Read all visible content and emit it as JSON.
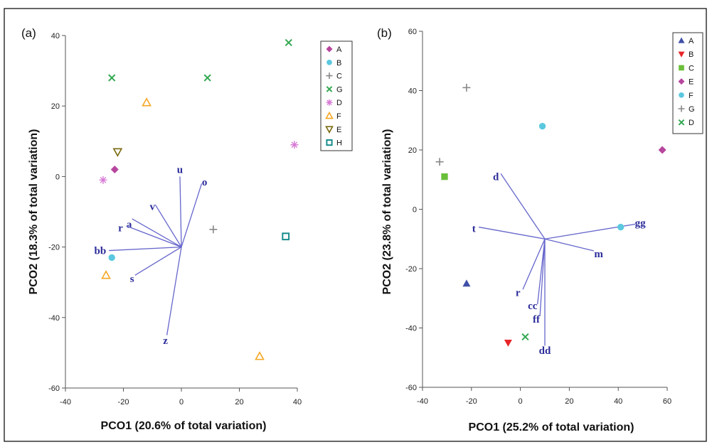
{
  "chart_data": [
    {
      "type": "scatter",
      "panel_label": "(a)",
      "xlabel": "PCO1 (20.6% of total variation)",
      "ylabel": "PCO2 (18.3% of total variation)",
      "xlim": [
        -40,
        40
      ],
      "ylim": [
        -60,
        40
      ],
      "xticks": [
        -40,
        -20,
        0,
        20,
        40
      ],
      "yticks": [
        -60,
        -40,
        -20,
        0,
        20,
        40
      ],
      "grid": false,
      "legend_position": "top-right",
      "origin": [
        0,
        -20
      ],
      "series": [
        {
          "name": "A",
          "color": "#b7469e",
          "marker": "diamond",
          "points": [
            [
              -23,
              2
            ]
          ]
        },
        {
          "name": "B",
          "color": "#5bc8e0",
          "marker": "circle",
          "points": [
            [
              -24,
              -23
            ]
          ]
        },
        {
          "name": "C",
          "color": "#888888",
          "marker": "plus",
          "points": [
            [
              11,
              -15
            ]
          ]
        },
        {
          "name": "G",
          "color": "#34a853",
          "marker": "x",
          "points": [
            [
              -24,
              28
            ],
            [
              9,
              28
            ],
            [
              37,
              38
            ]
          ]
        },
        {
          "name": "D",
          "color": "#d77bd6",
          "marker": "asterisk",
          "points": [
            [
              -27,
              -1
            ],
            [
              39,
              9
            ]
          ]
        },
        {
          "name": "F",
          "color": "#f5a623",
          "marker": "triangle-up-open",
          "points": [
            [
              -12,
              21
            ],
            [
              -26,
              -28
            ],
            [
              27,
              -51
            ]
          ]
        },
        {
          "name": "E",
          "color": "#7a6a10",
          "marker": "triangle-down-open",
          "points": [
            [
              -22,
              7
            ]
          ]
        },
        {
          "name": "H",
          "color": "#1a8c8c",
          "marker": "square-open",
          "points": [
            [
              36,
              -17
            ]
          ]
        }
      ],
      "vectors": [
        {
          "label": "u",
          "end": [
            -0.5,
            0
          ],
          "label_at": [
            -0.5,
            2
          ]
        },
        {
          "label": "o",
          "end": [
            7,
            -2
          ],
          "label_at": [
            8,
            -1.5
          ]
        },
        {
          "label": "v",
          "end": [
            -9,
            -8
          ],
          "label_at": [
            -10,
            -8.5
          ]
        },
        {
          "label": "a",
          "end": [
            -17,
            -12
          ],
          "label_at": [
            -18,
            -13.5
          ]
        },
        {
          "label": "r",
          "end": [
            -19,
            -14
          ],
          "label_at": [
            -21,
            -14.5
          ]
        },
        {
          "label": "bb",
          "end": [
            -25,
            -21
          ],
          "label_at": [
            -28,
            -21
          ]
        },
        {
          "label": "s",
          "end": [
            -16,
            -28
          ],
          "label_at": [
            -17,
            -29
          ]
        },
        {
          "label": "z",
          "end": [
            -5,
            -45
          ],
          "label_at": [
            -5.5,
            -46.5
          ]
        }
      ]
    },
    {
      "type": "scatter",
      "panel_label": "(b)",
      "xlabel": "PCO1 (25.2% of total variation)",
      "ylabel": "PCO2 (23.8% of total variation)",
      "xlim": [
        -40,
        60
      ],
      "ylim": [
        -60,
        60
      ],
      "xticks": [
        -40,
        -20,
        0,
        20,
        40,
        60
      ],
      "yticks": [
        -60,
        -40,
        -20,
        0,
        20,
        40,
        60
      ],
      "grid": false,
      "legend_position": "top-right",
      "origin": [
        10,
        -10
      ],
      "series": [
        {
          "name": "A",
          "color": "#3f4fa8",
          "marker": "triangle-up",
          "points": [
            [
              -22,
              -25
            ]
          ]
        },
        {
          "name": "B",
          "color": "#e8262a",
          "marker": "triangle-down",
          "points": [
            [
              -5,
              -45
            ]
          ]
        },
        {
          "name": "C",
          "color": "#6abf3a",
          "marker": "square",
          "points": [
            [
              -31,
              11
            ]
          ]
        },
        {
          "name": "E",
          "color": "#b7469e",
          "marker": "diamond",
          "points": [
            [
              58,
              20
            ]
          ]
        },
        {
          "name": "F",
          "color": "#5bc8e0",
          "marker": "circle",
          "points": [
            [
              9,
              28
            ],
            [
              41,
              -6
            ]
          ]
        },
        {
          "name": "G",
          "color": "#888888",
          "marker": "plus",
          "points": [
            [
              -22,
              41
            ],
            [
              -33,
              16
            ]
          ]
        },
        {
          "name": "D",
          "color": "#34a853",
          "marker": "x",
          "points": [
            [
              2,
              -43
            ]
          ]
        }
      ],
      "vectors": [
        {
          "label": "d",
          "end": [
            -8,
            12
          ],
          "label_at": [
            -10,
            11
          ]
        },
        {
          "label": "t",
          "end": [
            -17,
            -6
          ],
          "label_at": [
            -19,
            -6.5
          ]
        },
        {
          "label": "gg",
          "end": [
            47,
            -5
          ],
          "label_at": [
            49,
            -4.5
          ]
        },
        {
          "label": "m",
          "end": [
            30,
            -14
          ],
          "label_at": [
            32,
            -15
          ]
        },
        {
          "label": "r",
          "end": [
            1,
            -27
          ],
          "label_at": [
            -1,
            -28
          ]
        },
        {
          "label": "cc",
          "end": [
            7,
            -32
          ],
          "label_at": [
            5,
            -32.5
          ]
        },
        {
          "label": "ff",
          "end": [
            8,
            -36
          ],
          "label_at": [
            6.5,
            -37
          ]
        },
        {
          "label": "dd",
          "end": [
            10,
            -46
          ],
          "label_at": [
            10,
            -47.5
          ]
        }
      ]
    }
  ]
}
